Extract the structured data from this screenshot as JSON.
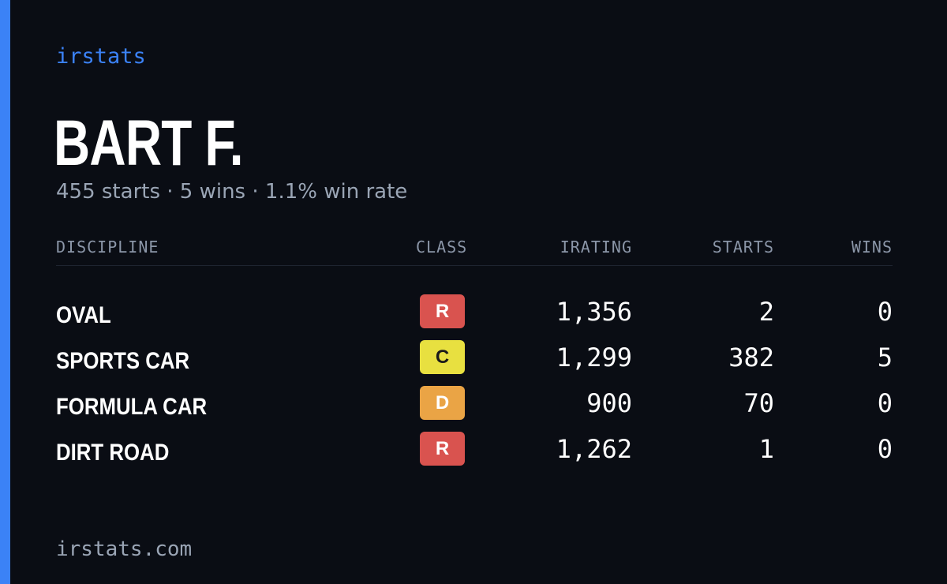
{
  "brand": "irstats",
  "driver": {
    "name": "BART F.",
    "summary": "455 starts · 5 wins · 1.1% win rate"
  },
  "table": {
    "headers": {
      "discipline": "DISCIPLINE",
      "class": "CLASS",
      "irating": "IRATING",
      "starts": "STARTS",
      "wins": "WINS"
    },
    "rows": [
      {
        "discipline": "OVAL",
        "class": "R",
        "class_color": "#d9534f",
        "class_text_color": "#ffffff",
        "irating": "1,356",
        "starts": "2",
        "wins": "0"
      },
      {
        "discipline": "SPORTS CAR",
        "class": "C",
        "class_color": "#e8e040",
        "class_text_color": "#1a1a1a",
        "irating": "1,299",
        "starts": "382",
        "wins": "5"
      },
      {
        "discipline": "FORMULA CAR",
        "class": "D",
        "class_color": "#eaa445",
        "class_text_color": "#ffffff",
        "irating": "900",
        "starts": "70",
        "wins": "0"
      },
      {
        "discipline": "DIRT ROAD",
        "class": "R",
        "class_color": "#d9534f",
        "class_text_color": "#ffffff",
        "irating": "1,262",
        "starts": "1",
        "wins": "0"
      }
    ]
  },
  "footer": "irstats.com",
  "colors": {
    "background": "#0a0d14",
    "accent": "#3b82f6",
    "muted_text": "#9aa5b5"
  }
}
